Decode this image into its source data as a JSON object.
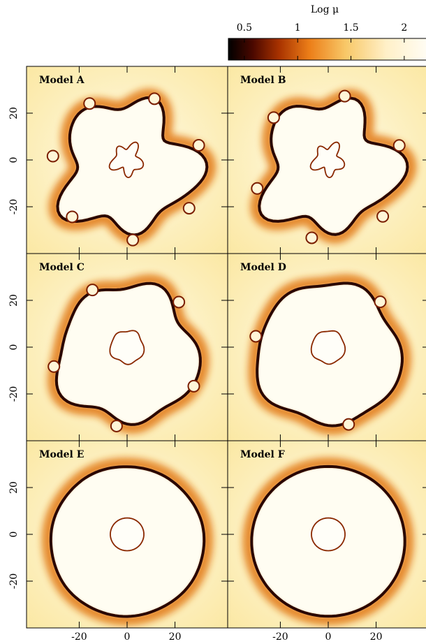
{
  "colorbar": {
    "label": "Log μ",
    "lim": [
      0.35,
      2.25
    ],
    "ticks": [
      0.5,
      1,
      1.5,
      2
    ]
  },
  "xlim": [
    -42,
    42
  ],
  "ylim": [
    -40,
    40
  ],
  "xticks": [
    -20,
    0,
    20
  ],
  "yticks": [
    -20,
    0,
    20
  ],
  "panels": [
    {
      "label": "Model A"
    },
    {
      "label": "Model B"
    },
    {
      "label": "Model C"
    },
    {
      "label": "Model D"
    },
    {
      "label": "Model E"
    },
    {
      "label": "Model F"
    }
  ]
}
